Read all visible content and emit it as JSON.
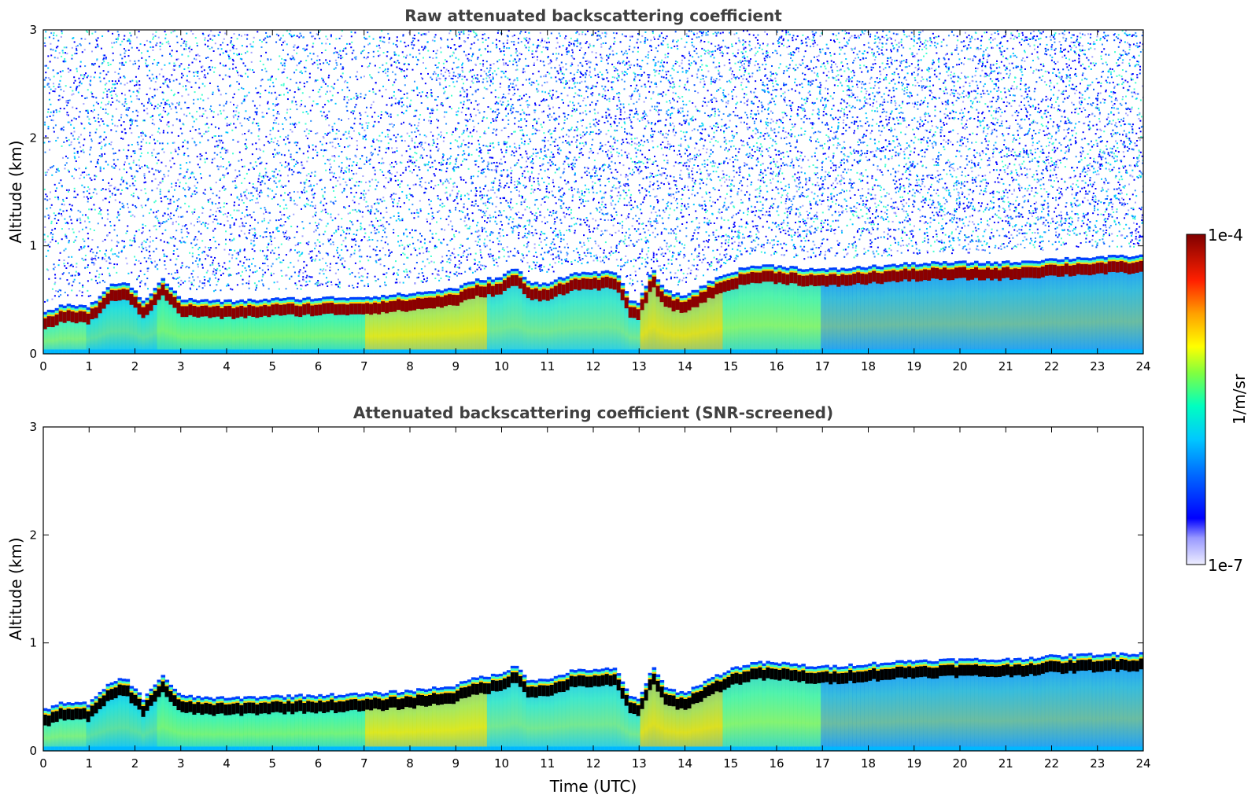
{
  "figure": {
    "xlabel": "Time (UTC)",
    "colorbar": {
      "label": "1/m/sr",
      "max_label": "1e-4",
      "min_label": "1e-7",
      "scale": "log",
      "range": [
        1e-07,
        0.0001
      ]
    }
  },
  "chart_data": [
    {
      "type": "heatmap",
      "title": "Raw attenuated backscattering coefficient",
      "ylabel": "Altitude (km)",
      "xlabel": "",
      "xlim": [
        0,
        24
      ],
      "ylim": [
        0,
        3
      ],
      "x_ticks": [
        "0",
        "1",
        "2",
        "3",
        "4",
        "5",
        "6",
        "7",
        "8",
        "9",
        "10",
        "11",
        "12",
        "13",
        "14",
        "15",
        "16",
        "17",
        "18",
        "19",
        "20",
        "21",
        "22",
        "23",
        "24"
      ],
      "y_ticks": [
        "0",
        "1",
        "2",
        "3"
      ],
      "layer_top_km": [
        {
          "t": 0,
          "z": 0.32
        },
        {
          "t": 0.5,
          "z": 0.4
        },
        {
          "t": 1,
          "z": 0.38
        },
        {
          "t": 1.5,
          "z": 0.58
        },
        {
          "t": 1.8,
          "z": 0.62
        },
        {
          "t": 2.2,
          "z": 0.42
        },
        {
          "t": 2.6,
          "z": 0.65
        },
        {
          "t": 3,
          "z": 0.45
        },
        {
          "t": 3.5,
          "z": 0.44
        },
        {
          "t": 4,
          "z": 0.43
        },
        {
          "t": 5,
          "z": 0.45
        },
        {
          "t": 6,
          "z": 0.46
        },
        {
          "t": 7,
          "z": 0.47
        },
        {
          "t": 8,
          "z": 0.5
        },
        {
          "t": 9,
          "z": 0.55
        },
        {
          "t": 9.5,
          "z": 0.63
        },
        {
          "t": 10,
          "z": 0.65
        },
        {
          "t": 10.3,
          "z": 0.75
        },
        {
          "t": 10.6,
          "z": 0.6
        },
        {
          "t": 11,
          "z": 0.6
        },
        {
          "t": 11.5,
          "z": 0.68
        },
        {
          "t": 12,
          "z": 0.7
        },
        {
          "t": 12.5,
          "z": 0.7
        },
        {
          "t": 12.8,
          "z": 0.45
        },
        {
          "t": 13,
          "z": 0.42
        },
        {
          "t": 13.3,
          "z": 0.72
        },
        {
          "t": 13.6,
          "z": 0.52
        },
        {
          "t": 14,
          "z": 0.48
        },
        {
          "t": 14.5,
          "z": 0.6
        },
        {
          "t": 15,
          "z": 0.7
        },
        {
          "t": 15.5,
          "z": 0.76
        },
        {
          "t": 16,
          "z": 0.76
        },
        {
          "t": 17,
          "z": 0.72
        },
        {
          "t": 18,
          "z": 0.75
        },
        {
          "t": 19,
          "z": 0.78
        },
        {
          "t": 20,
          "z": 0.79
        },
        {
          "t": 21,
          "z": 0.79
        },
        {
          "t": 22,
          "z": 0.82
        },
        {
          "t": 23,
          "z": 0.84
        },
        {
          "t": 24,
          "z": 0.85
        }
      ],
      "noise_above_layer": true
    },
    {
      "type": "heatmap",
      "title": "Attenuated backscattering coefficient (SNR-screened)",
      "ylabel": "Altitude (km)",
      "xlabel": "Time (UTC)",
      "xlim": [
        0,
        24
      ],
      "ylim": [
        0,
        3
      ],
      "x_ticks": [
        "0",
        "1",
        "2",
        "3",
        "4",
        "5",
        "6",
        "7",
        "8",
        "9",
        "10",
        "11",
        "12",
        "13",
        "14",
        "15",
        "16",
        "17",
        "18",
        "19",
        "20",
        "21",
        "22",
        "23",
        "24"
      ],
      "y_ticks": [
        "0",
        "1",
        "2",
        "3"
      ],
      "layer_top_km": [
        {
          "t": 0,
          "z": 0.32
        },
        {
          "t": 0.5,
          "z": 0.4
        },
        {
          "t": 1,
          "z": 0.38
        },
        {
          "t": 1.5,
          "z": 0.58
        },
        {
          "t": 1.8,
          "z": 0.62
        },
        {
          "t": 2.2,
          "z": 0.42
        },
        {
          "t": 2.6,
          "z": 0.65
        },
        {
          "t": 3,
          "z": 0.45
        },
        {
          "t": 3.5,
          "z": 0.44
        },
        {
          "t": 4,
          "z": 0.43
        },
        {
          "t": 5,
          "z": 0.45
        },
        {
          "t": 6,
          "z": 0.46
        },
        {
          "t": 7,
          "z": 0.47
        },
        {
          "t": 8,
          "z": 0.5
        },
        {
          "t": 9,
          "z": 0.55
        },
        {
          "t": 9.5,
          "z": 0.63
        },
        {
          "t": 10,
          "z": 0.65
        },
        {
          "t": 10.3,
          "z": 0.75
        },
        {
          "t": 10.6,
          "z": 0.6
        },
        {
          "t": 11,
          "z": 0.6
        },
        {
          "t": 11.5,
          "z": 0.68
        },
        {
          "t": 12,
          "z": 0.7
        },
        {
          "t": 12.5,
          "z": 0.7
        },
        {
          "t": 12.8,
          "z": 0.45
        },
        {
          "t": 13,
          "z": 0.42
        },
        {
          "t": 13.3,
          "z": 0.72
        },
        {
          "t": 13.6,
          "z": 0.52
        },
        {
          "t": 14,
          "z": 0.48
        },
        {
          "t": 14.5,
          "z": 0.6
        },
        {
          "t": 15,
          "z": 0.7
        },
        {
          "t": 15.5,
          "z": 0.76
        },
        {
          "t": 16,
          "z": 0.76
        },
        {
          "t": 17,
          "z": 0.72
        },
        {
          "t": 18,
          "z": 0.75
        },
        {
          "t": 19,
          "z": 0.78
        },
        {
          "t": 20,
          "z": 0.79
        },
        {
          "t": 21,
          "z": 0.79
        },
        {
          "t": 22,
          "z": 0.82
        },
        {
          "t": 23,
          "z": 0.84
        },
        {
          "t": 24,
          "z": 0.85
        }
      ],
      "noise_above_layer": false
    }
  ],
  "colors": {
    "colormap": [
      "#ffffff",
      "#ccccff",
      "#0000ff",
      "#0080ff",
      "#00c8ff",
      "#00ffc0",
      "#80ff40",
      "#ffff00",
      "#ff8000",
      "#ff0000",
      "#800000"
    ],
    "screened_peak": "#000000"
  }
}
